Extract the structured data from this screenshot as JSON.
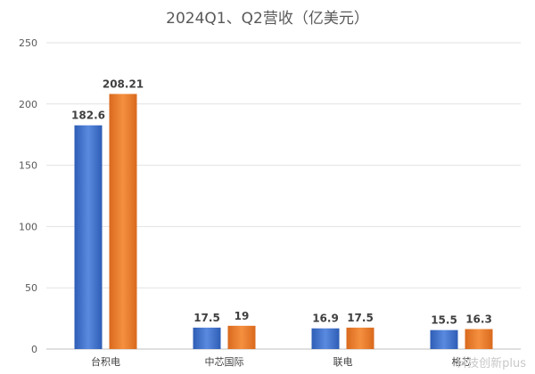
{
  "chart_data": {
    "type": "bar",
    "title": "2024Q1、Q2营收（亿美元）",
    "categories": [
      "台积电",
      "中芯国际",
      "联电",
      "格芯"
    ],
    "series": [
      {
        "values": [
          182.6,
          17.5,
          16.9,
          15.5
        ],
        "color": "#4472C4"
      },
      {
        "values": [
          208.21,
          19,
          17.5,
          16.3
        ],
        "color": "#ED7D31"
      }
    ],
    "data_labels": [
      [
        "182.6",
        "17.5",
        "16.9",
        "15.5"
      ],
      [
        "208.21",
        "19",
        "17.5",
        "16.3"
      ]
    ],
    "ylim": [
      0,
      250
    ],
    "yticks": [
      0,
      50,
      100,
      150,
      200,
      250
    ],
    "grid": true,
    "legend": "none"
  },
  "watermark": "科技创新plus"
}
